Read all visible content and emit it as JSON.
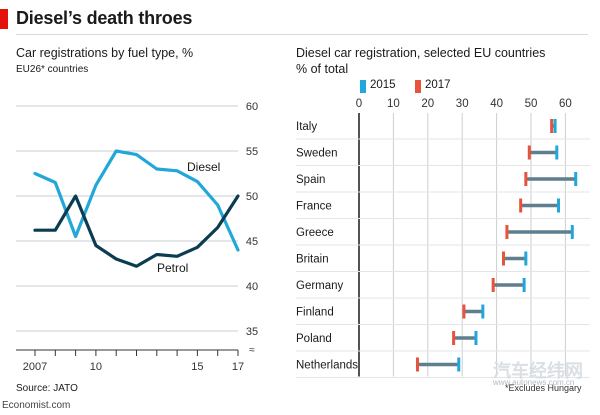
{
  "header": {
    "title": "Diesel’s death throes",
    "source": "Source: JATO",
    "website": "Economist.com",
    "footnote": "*Excludes Hungary",
    "watermark": "汽车经纬网",
    "watermark_url": "www.autonews.com.cn"
  },
  "colors": {
    "diesel_2015": "#21a7d9",
    "petrol_2017": "#e8533c",
    "petrol_line": "#0c3c51",
    "dumbbell_bar": "#5f7f8f",
    "grid": "#c9cfd3",
    "brand": "#e3120b"
  },
  "chart_data": [
    {
      "type": "line",
      "title": "Car registrations by fuel type, %",
      "subtitle": "EU26* countries",
      "x": [
        2007,
        2008,
        2009,
        2010,
        2011,
        2012,
        2013,
        2014,
        2015,
        2016,
        2017
      ],
      "x_ticks": [
        2007,
        2010,
        2015,
        2017
      ],
      "x_tick_labels": [
        "2007",
        "10",
        "15",
        "17"
      ],
      "ylim": [
        35,
        60
      ],
      "y_ticks": [
        35,
        40,
        45,
        50,
        55,
        60
      ],
      "axis_break_symbol": "≈",
      "series": [
        {
          "name": "Diesel",
          "values": [
            52.5,
            51.5,
            45.5,
            51.2,
            55.0,
            54.6,
            53.0,
            52.8,
            51.6,
            49.0,
            44.0
          ]
        },
        {
          "name": "Petrol",
          "values": [
            46.2,
            46.2,
            50.0,
            44.5,
            43.0,
            42.2,
            43.5,
            43.3,
            44.3,
            46.5,
            50.0
          ]
        }
      ]
    },
    {
      "type": "dumbbell",
      "title": "Diesel car registration, selected EU countries",
      "subtitle": "% of total",
      "xlim": [
        0,
        65
      ],
      "x_ticks": [
        0,
        10,
        20,
        30,
        40,
        50,
        60
      ],
      "legend": [
        "2015",
        "2017"
      ],
      "categories": [
        "Italy",
        "Sweden",
        "Spain",
        "France",
        "Greece",
        "Britain",
        "Germany",
        "Finland",
        "Poland",
        "Netherlands"
      ],
      "series": [
        {
          "name": "2015",
          "values": [
            57,
            57.5,
            63,
            58,
            62,
            48.5,
            48,
            36,
            34,
            29
          ]
        },
        {
          "name": "2017",
          "values": [
            56,
            49.5,
            48.5,
            47,
            43,
            42,
            39,
            30.5,
            27.5,
            17
          ]
        }
      ]
    }
  ]
}
